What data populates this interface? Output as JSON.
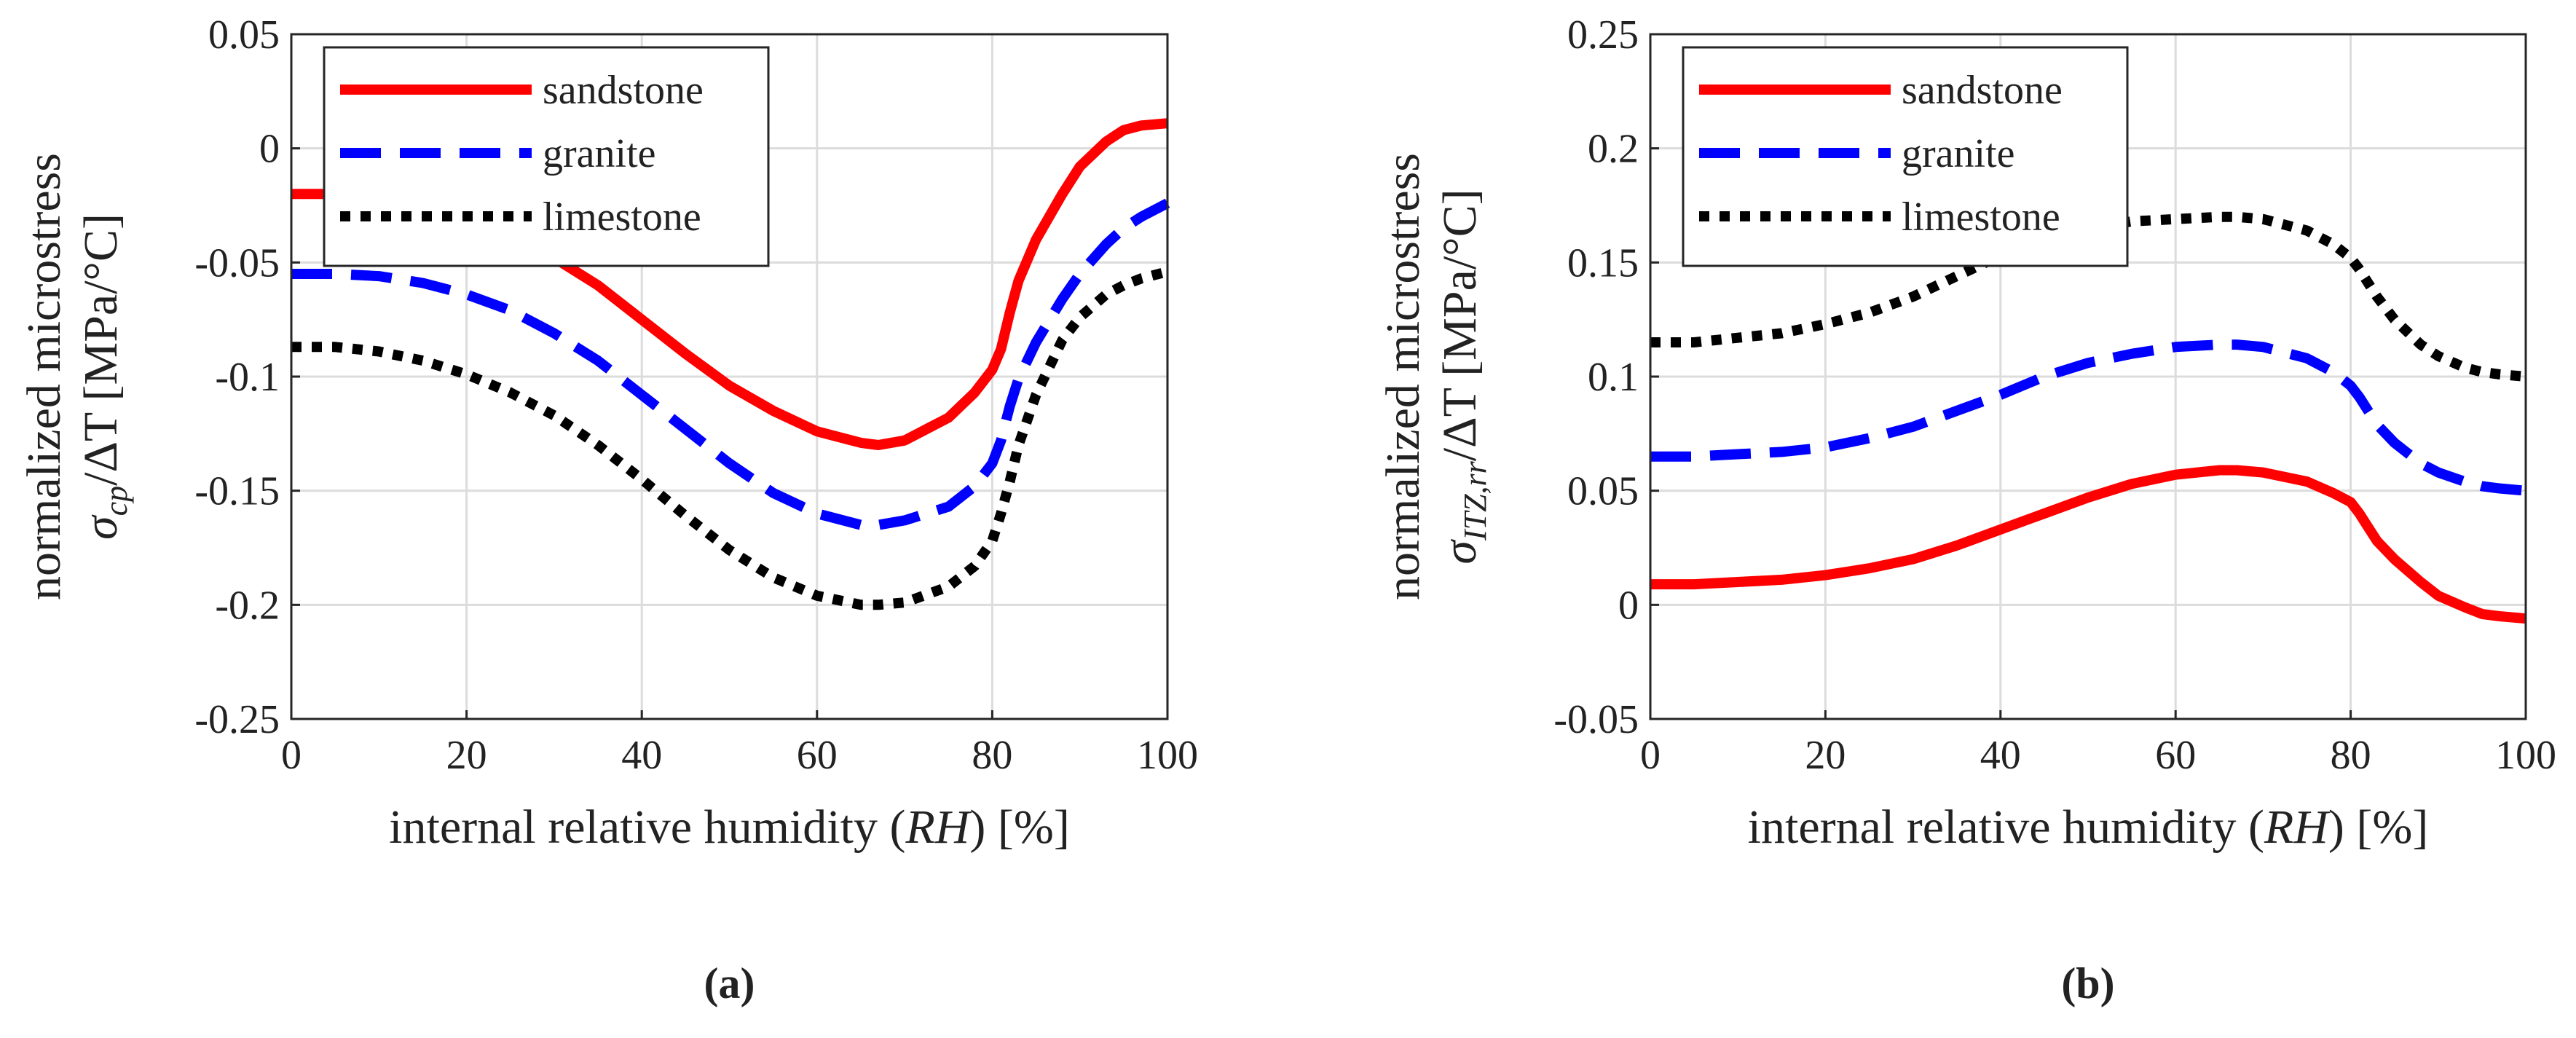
{
  "chart_data": [
    {
      "type": "line",
      "subfigure_label": "(a)",
      "xlabel": "internal relative humidity",
      "xlabel_symbol": "(RH) [%]",
      "ylabel_line1": "normalized microstress",
      "ylabel_sigma": "σ",
      "ylabel_sub": "cp",
      "ylabel_rest": "/ΔT [MPa/°C]",
      "xlim": [
        0,
        100
      ],
      "ylim": [
        -0.25,
        0.05
      ],
      "xticks": [
        0,
        20,
        40,
        60,
        80,
        100
      ],
      "xtick_labels": [
        "0",
        "20",
        "40",
        "60",
        "80",
        "100"
      ],
      "yticks": [
        -0.25,
        -0.2,
        -0.15,
        -0.1,
        -0.05,
        0,
        0.05
      ],
      "ytick_labels": [
        "-0.25",
        "-0.2",
        "-0.15",
        "-0.1",
        "-0.05",
        "0",
        "0.05"
      ],
      "grid": true,
      "legend_position": "top-left",
      "x": [
        0,
        5,
        10,
        15,
        20,
        25,
        30,
        35,
        40,
        45,
        50,
        55,
        60,
        65,
        67,
        70,
        75,
        78,
        80,
        81,
        82,
        83,
        85,
        88,
        90,
        93,
        95,
        97,
        100
      ],
      "series": [
        {
          "name": "sandstone",
          "color": "#ff0000",
          "dash": "solid",
          "values": [
            -0.02,
            -0.02,
            -0.021,
            -0.024,
            -0.03,
            -0.038,
            -0.048,
            -0.06,
            -0.075,
            -0.09,
            -0.104,
            -0.115,
            -0.124,
            -0.129,
            -0.13,
            -0.128,
            -0.118,
            -0.107,
            -0.097,
            -0.088,
            -0.072,
            -0.058,
            -0.04,
            -0.02,
            -0.008,
            0.003,
            0.008,
            0.01,
            0.011
          ]
        },
        {
          "name": "granite",
          "color": "#0000ff",
          "dash": "dashed",
          "values": [
            -0.055,
            -0.055,
            -0.056,
            -0.059,
            -0.064,
            -0.071,
            -0.081,
            -0.093,
            -0.108,
            -0.123,
            -0.138,
            -0.151,
            -0.16,
            -0.165,
            -0.165,
            -0.163,
            -0.157,
            -0.148,
            -0.138,
            -0.128,
            -0.113,
            -0.101,
            -0.085,
            -0.066,
            -0.055,
            -0.042,
            -0.035,
            -0.03,
            -0.024
          ]
        },
        {
          "name": "limestone",
          "color": "#000000",
          "dash": "dotted",
          "values": [
            -0.087,
            -0.087,
            -0.089,
            -0.093,
            -0.099,
            -0.107,
            -0.117,
            -0.13,
            -0.145,
            -0.161,
            -0.176,
            -0.188,
            -0.196,
            -0.2,
            -0.2,
            -0.199,
            -0.192,
            -0.183,
            -0.172,
            -0.16,
            -0.146,
            -0.13,
            -0.108,
            -0.084,
            -0.074,
            -0.064,
            -0.06,
            -0.057,
            -0.054
          ]
        }
      ]
    },
    {
      "type": "line",
      "subfigure_label": "(b)",
      "xlabel": "internal relative humidity",
      "xlabel_symbol": "(RH) [%]",
      "ylabel_line1": "normalized microstress",
      "ylabel_sigma": "σ",
      "ylabel_sub": "ITZ,rr",
      "ylabel_rest": "/ΔT [MPa/°C]",
      "xlim": [
        0,
        100
      ],
      "ylim": [
        -0.05,
        0.25
      ],
      "xticks": [
        0,
        20,
        40,
        60,
        80,
        100
      ],
      "xtick_labels": [
        "0",
        "20",
        "40",
        "60",
        "80",
        "100"
      ],
      "yticks": [
        -0.05,
        0,
        0.05,
        0.1,
        0.15,
        0.2,
        0.25
      ],
      "ytick_labels": [
        "-0.05",
        "0",
        "0.05",
        "0.1",
        "0.15",
        "0.2",
        "0.25"
      ],
      "grid": true,
      "legend_position": "top-left",
      "x": [
        0,
        5,
        10,
        15,
        20,
        25,
        30,
        35,
        40,
        45,
        50,
        55,
        60,
        65,
        67,
        70,
        75,
        78,
        80,
        81,
        82,
        83,
        85,
        88,
        90,
        93,
        95,
        97,
        100
      ],
      "series": [
        {
          "name": "sandstone",
          "color": "#ff0000",
          "dash": "solid",
          "values": [
            0.009,
            0.009,
            0.01,
            0.011,
            0.013,
            0.016,
            0.02,
            0.026,
            0.033,
            0.04,
            0.047,
            0.053,
            0.057,
            0.059,
            0.059,
            0.058,
            0.054,
            0.049,
            0.045,
            0.04,
            0.034,
            0.028,
            0.02,
            0.01,
            0.004,
            -0.001,
            -0.004,
            -0.005,
            -0.006
          ]
        },
        {
          "name": "granite",
          "color": "#0000ff",
          "dash": "dashed",
          "values": [
            0.065,
            0.065,
            0.066,
            0.067,
            0.069,
            0.073,
            0.078,
            0.085,
            0.092,
            0.1,
            0.106,
            0.11,
            0.113,
            0.114,
            0.114,
            0.113,
            0.108,
            0.102,
            0.096,
            0.091,
            0.085,
            0.079,
            0.071,
            0.062,
            0.058,
            0.054,
            0.052,
            0.051,
            0.05
          ]
        },
        {
          "name": "limestone",
          "color": "#000000",
          "dash": "dotted",
          "values": [
            0.115,
            0.115,
            0.117,
            0.119,
            0.123,
            0.128,
            0.135,
            0.144,
            0.153,
            0.16,
            0.165,
            0.168,
            0.169,
            0.17,
            0.17,
            0.169,
            0.164,
            0.158,
            0.152,
            0.147,
            0.141,
            0.135,
            0.125,
            0.114,
            0.109,
            0.104,
            0.102,
            0.101,
            0.1
          ]
        }
      ]
    }
  ]
}
